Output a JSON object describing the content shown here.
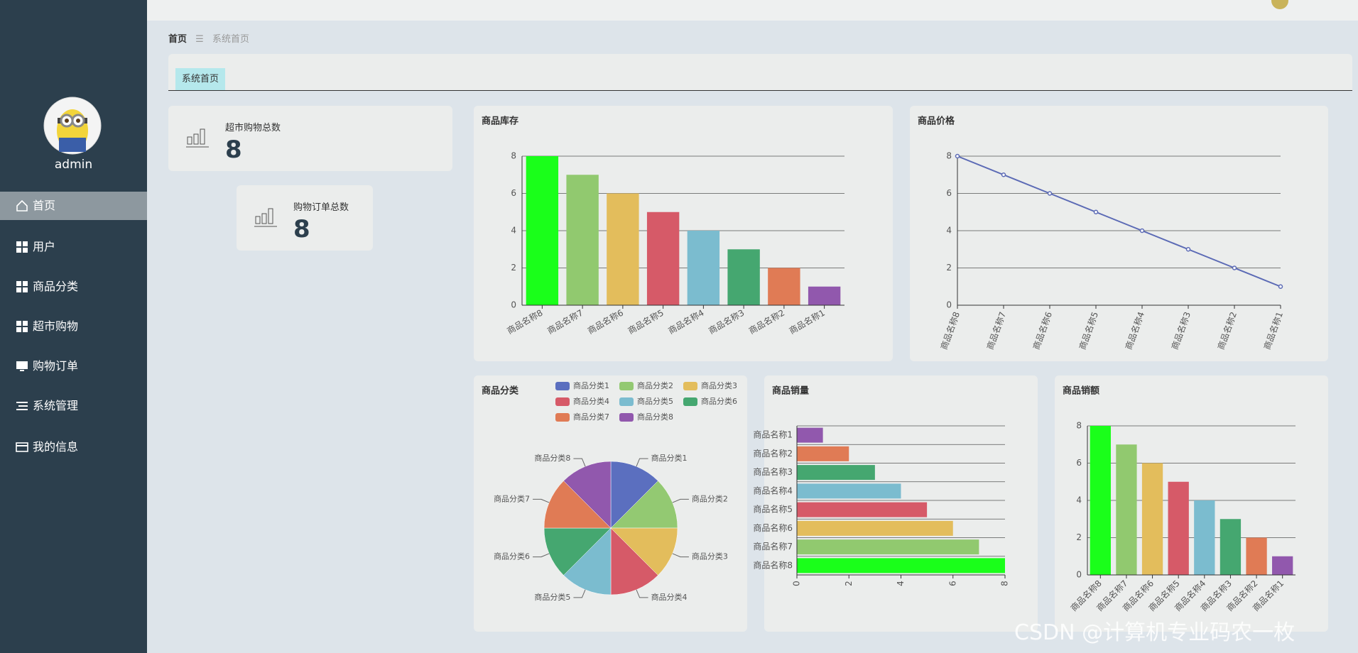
{
  "sidebar": {
    "user": "admin",
    "menu": [
      "首页",
      "用户",
      "商品分类",
      "超市购物",
      "购物订单",
      "系统管理",
      "我的信息"
    ]
  },
  "breadcrumb": {
    "home": "首页",
    "current": "系统首页"
  },
  "tab": "系统首页",
  "stats": [
    {
      "label": "超市购物总数",
      "value": 8
    },
    {
      "label": "购物订单总数",
      "value": 8
    }
  ],
  "watermark": "CSDN @计算机专业码农一枚",
  "chart_data": [
    {
      "type": "bar",
      "title": "商品库存",
      "categories": [
        "商品名称8",
        "商品名称7",
        "商品名称6",
        "商品名称5",
        "商品名称4",
        "商品名称3",
        "商品名称2",
        "商品名称1"
      ],
      "values": [
        8,
        7,
        6,
        5,
        4,
        3,
        2,
        1
      ],
      "colors": [
        "#1aff1a",
        "#91c96f",
        "#e3bd5c",
        "#d65a68",
        "#7bbccf",
        "#45a770",
        "#e07b55",
        "#9158ad"
      ],
      "ylim": [
        0,
        8
      ],
      "yticks": [
        0,
        2,
        4,
        6,
        8
      ],
      "grid": true
    },
    {
      "type": "line",
      "title": "商品价格",
      "categories": [
        "商品名称8",
        "商品名称7",
        "商品名称6",
        "商品名称5",
        "商品名称4",
        "商品名称3",
        "商品名称2",
        "商品名称1"
      ],
      "values": [
        8,
        7,
        6,
        5,
        4,
        3,
        2,
        1
      ],
      "color": "#5b6ab5",
      "ylim": [
        0,
        8
      ],
      "yticks": [
        0,
        2,
        4,
        6,
        8
      ],
      "grid": true
    },
    {
      "type": "pie",
      "title": "商品分类",
      "categories": [
        "商品分类1",
        "商品分类2",
        "商品分类3",
        "商品分类4",
        "商品分类5",
        "商品分类6",
        "商品分类7",
        "商品分类8"
      ],
      "values": [
        1,
        1,
        1,
        1,
        1,
        1,
        1,
        1
      ],
      "colors": [
        "#5b6fbf",
        "#93c972",
        "#e3bd5c",
        "#d65a68",
        "#7bbccf",
        "#45a770",
        "#e07b55",
        "#9158ad"
      ],
      "legend": "top-right"
    },
    {
      "type": "barh",
      "title": "商品销量",
      "categories": [
        "商品名称1",
        "商品名称2",
        "商品名称3",
        "商品名称4",
        "商品名称5",
        "商品名称6",
        "商品名称7",
        "商品名称8"
      ],
      "values": [
        1,
        2,
        3,
        4,
        5,
        6,
        7,
        8
      ],
      "colors": [
        "#9158ad",
        "#e07b55",
        "#45a770",
        "#7bbccf",
        "#d65a68",
        "#e3bd5c",
        "#91c96f",
        "#1aff1a"
      ],
      "xlim": [
        0,
        8
      ],
      "xticks": [
        0,
        2,
        4,
        6,
        8
      ],
      "grid": true
    },
    {
      "type": "bar",
      "title": "商品销额",
      "categories": [
        "商品名称8",
        "商品名称7",
        "商品名称6",
        "商品名称5",
        "商品名称4",
        "商品名称3",
        "商品名称2",
        "商品名称1"
      ],
      "values": [
        8,
        7,
        6,
        5,
        4,
        3,
        2,
        1
      ],
      "colors": [
        "#1aff1a",
        "#91c96f",
        "#e3bd5c",
        "#d65a68",
        "#7bbccf",
        "#45a770",
        "#e07b55",
        "#9158ad"
      ],
      "ylim": [
        0,
        8
      ],
      "yticks": [
        0,
        2,
        4,
        6,
        8
      ],
      "grid": true
    }
  ]
}
